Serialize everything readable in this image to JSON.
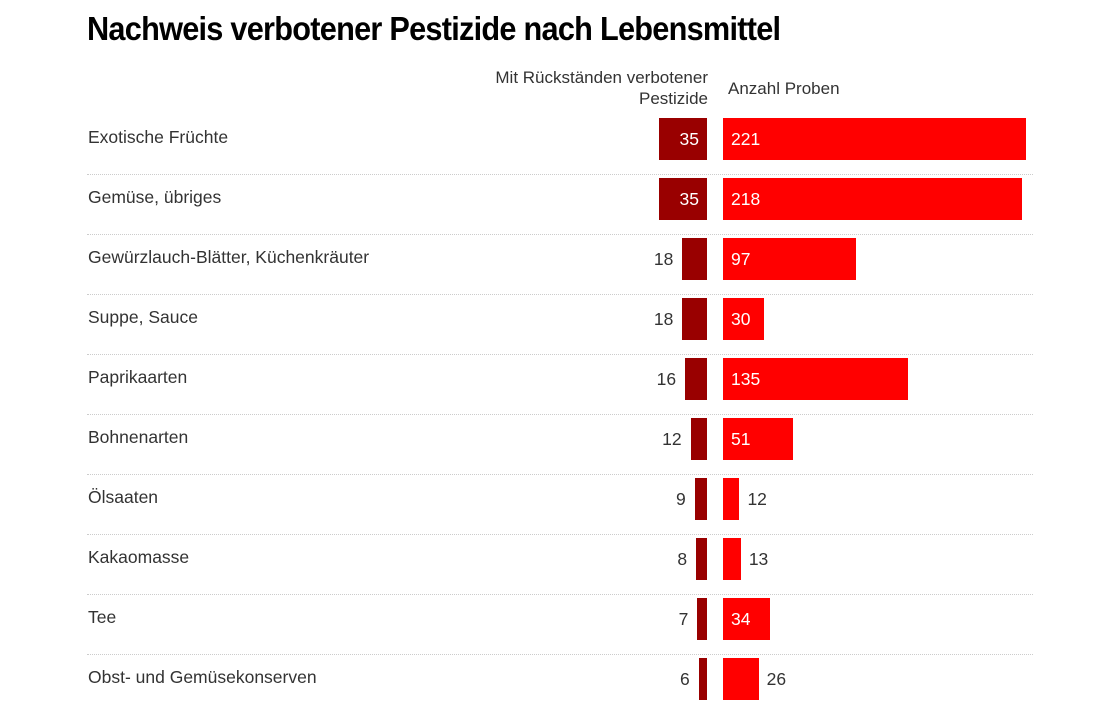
{
  "title": "Nachweis verbotener Pestizide nach Lebensmittel",
  "columns": {
    "left": "Mit Rückständen verbotener Pestizide",
    "right": "Anzahl Proben"
  },
  "colors": {
    "forbidden": "#990000",
    "samples": "#ff0000"
  },
  "chart_data": {
    "type": "bar",
    "title": "Nachweis verbotener Pestizide nach Lebensmittel",
    "xlabel": "",
    "ylabel": "",
    "grid": false,
    "categories": [
      "Exotische Früchte",
      "Gemüse, übriges",
      "Gewürzlauch-Blätter, Küchenkräuter",
      "Suppe, Sauce",
      "Paprikaarten",
      "Bohnenarten",
      "Ölsaaten",
      "Kakaomasse",
      "Tee",
      "Obst- und Gemüsekonserven"
    ],
    "series": [
      {
        "name": "Mit Rückständen verbotener Pestizide",
        "values": [
          35,
          35,
          18,
          18,
          16,
          12,
          9,
          8,
          7,
          6
        ]
      },
      {
        "name": "Anzahl Proben",
        "values": [
          221,
          218,
          97,
          30,
          135,
          51,
          12,
          13,
          34,
          26
        ]
      }
    ],
    "xlim": [
      0,
      221
    ]
  }
}
